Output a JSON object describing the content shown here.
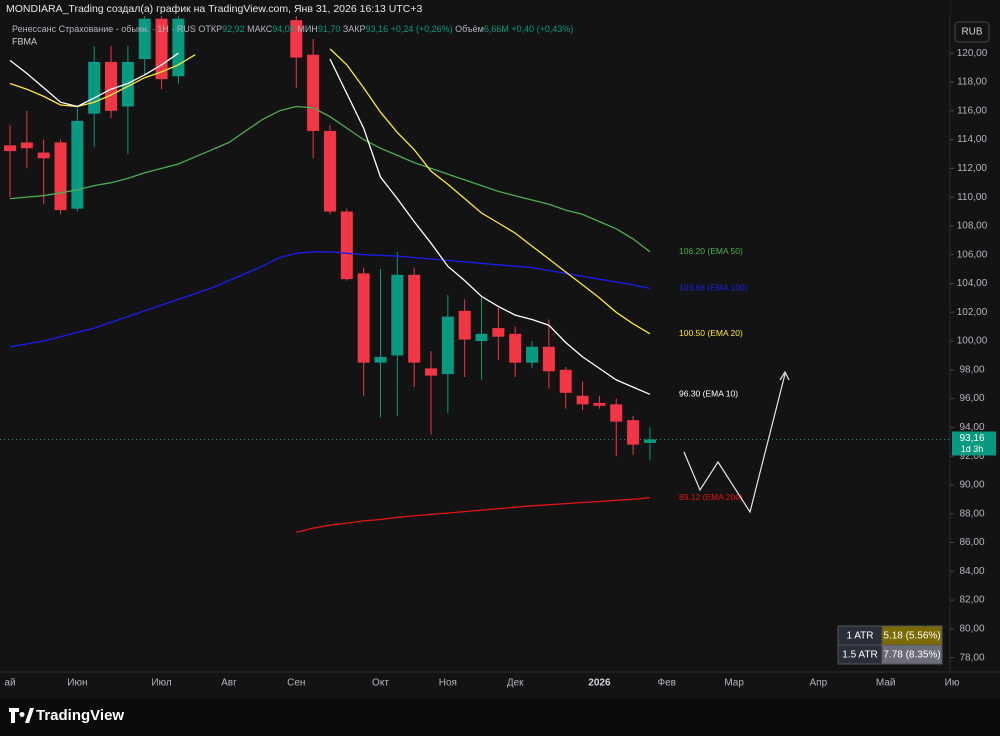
{
  "header": "MONDIARA_Trading создал(а) график на TradingView.com, Янв 31, 2026 16:13 UTC+3",
  "legend": {
    "symbol": "Ренессанс Страхование - обыкн. · 1Н · RUS",
    "open_label": "ОТКР",
    "open": "92,92",
    "high_label": "МАКС",
    "high": "94,00",
    "low_label": "МИН",
    "low": "91,70",
    "close_label": "ЗАКР",
    "close": "93,16",
    "change": "+0,24 (+0,26%)",
    "volume_label": "Объём",
    "volume": "6,66M",
    "volume_change": "+0,40 (+0,43%)",
    "indicator": "FBMA"
  },
  "currency": "RUB",
  "atr": [
    {
      "label": "1 ATR",
      "value": "5.18 (5.56%)"
    },
    {
      "label": "1.5 ATR",
      "value": "7.78 (8.35%)"
    }
  ],
  "footer": "TradingView",
  "chart_data": {
    "type": "candlestick",
    "categories": [
      "ай",
      null,
      null,
      null,
      "Июн",
      null,
      null,
      null,
      null,
      "Июл",
      null,
      null,
      null,
      "Авг",
      null,
      null,
      null,
      "Сен",
      null,
      null,
      null,
      null,
      "Окт",
      null,
      null,
      null,
      "Ноя",
      null,
      null,
      null,
      "Дек",
      null,
      null,
      null,
      null,
      "2026",
      null,
      null,
      null,
      "Фев",
      null,
      null,
      null,
      "Мар",
      null,
      null,
      null,
      null,
      "Апр",
      null,
      null,
      null,
      "Май",
      null,
      null,
      null,
      "Ию"
    ],
    "candles": {
      "up_color": "#089981",
      "down_color": "#f23645",
      "open": [
        113.6,
        113.8,
        113.1,
        113.8,
        109.2,
        115.8,
        119.4,
        116.3,
        119.6,
        122.4,
        118.4,
        null,
        null,
        null,
        null,
        null,
        null,
        122.3,
        119.9,
        114.6,
        109.0,
        104.7,
        98.5,
        99.0,
        104.6,
        98.1,
        97.7,
        102.1,
        100.0,
        100.9,
        100.5,
        98.5,
        99.6,
        98.0,
        96.2,
        95.7,
        95.6,
        94.5,
        92.92,
        null,
        null,
        null,
        null,
        null,
        null,
        null,
        null,
        null,
        null,
        null,
        null,
        null,
        null,
        null,
        null,
        null,
        null
      ],
      "high": [
        115.0,
        116.0,
        114.0,
        114.0,
        116.2,
        120.5,
        120.5,
        120.5,
        124,
        124,
        124,
        null,
        null,
        null,
        null,
        null,
        null,
        124,
        121,
        115.0,
        109.2,
        105.1,
        105.0,
        106.2,
        105.1,
        99.3,
        103.2,
        102.9,
        103.0,
        102.3,
        101.0,
        100.0,
        101.5,
        98.2,
        97.2,
        96.2,
        96.0,
        94.8,
        94.0,
        null,
        null,
        null,
        null,
        null,
        null,
        null,
        null,
        null,
        null,
        null,
        null,
        null,
        null,
        null,
        null,
        null,
        null
      ],
      "low": [
        110.0,
        112.0,
        109.5,
        108.8,
        109.0,
        113.5,
        115.5,
        113.0,
        118.5,
        117.5,
        117.9,
        null,
        null,
        null,
        null,
        null,
        null,
        117.6,
        112.7,
        108.8,
        104.2,
        96.2,
        94.7,
        94.8,
        96.8,
        93.5,
        95.0,
        97.5,
        97.3,
        98.7,
        97.5,
        98.1,
        96.7,
        95.3,
        95.2,
        95.3,
        92.0,
        92.1,
        91.7,
        null,
        null,
        null,
        null,
        null,
        null,
        null,
        null,
        null,
        null,
        null,
        null,
        null,
        null,
        null,
        null,
        null,
        null
      ],
      "close": [
        113.2,
        113.4,
        112.7,
        109.1,
        115.3,
        119.4,
        116.0,
        119.4,
        122.4,
        118.2,
        122.4,
        null,
        null,
        null,
        null,
        null,
        null,
        119.7,
        114.6,
        109.0,
        104.3,
        98.5,
        98.9,
        104.6,
        98.5,
        97.6,
        101.7,
        100.1,
        100.5,
        100.3,
        98.5,
        99.6,
        97.9,
        96.4,
        95.6,
        95.5,
        94.4,
        92.8,
        93.16,
        null,
        null,
        null,
        null,
        null,
        null,
        null,
        null,
        null,
        null,
        null,
        null,
        null,
        null,
        null,
        null,
        null,
        null
      ]
    },
    "series": [
      {
        "label": "106.20 (EMA 50)",
        "color": "#4caf50",
        "values": [
          109.9,
          110.0,
          110.1,
          110.3,
          110.5,
          110.8,
          111.0,
          111.3,
          111.7,
          112.0,
          112.3,
          112.8,
          113.3,
          113.8,
          114.6,
          115.4,
          116.0,
          116.3,
          116.2,
          115.6,
          114.8,
          114.0,
          113.4,
          112.9,
          112.4,
          112.0,
          111.6,
          111.2,
          110.8,
          110.4,
          110.1,
          109.8,
          109.5,
          109.1,
          108.8,
          108.3,
          107.8,
          107.1,
          106.2,
          null,
          null,
          null,
          null,
          null,
          null,
          null,
          null,
          null,
          null,
          null,
          null,
          null,
          null,
          null,
          null,
          null,
          null
        ]
      },
      {
        "label": "103.66 (EMA 100)",
        "color": "#1c1cf0",
        "values": [
          99.6,
          99.8,
          100.0,
          100.3,
          100.6,
          100.9,
          101.3,
          101.7,
          102.1,
          102.5,
          102.9,
          103.3,
          103.7,
          104.2,
          104.7,
          105.2,
          105.8,
          106.1,
          106.2,
          106.2,
          106.1,
          106.0,
          105.95,
          105.9,
          105.8,
          105.7,
          105.6,
          105.5,
          105.4,
          105.3,
          105.2,
          105.1,
          104.9,
          104.7,
          104.5,
          104.3,
          104.1,
          103.9,
          103.66,
          null,
          null,
          null,
          null,
          null,
          null,
          null,
          null,
          null,
          null,
          null,
          null,
          null,
          null,
          null,
          null,
          null,
          null
        ]
      },
      {
        "label": "100.50 (EMA 20)",
        "color": "#ffe83b",
        "values": [
          117.9,
          117.5,
          117.0,
          116.4,
          116.3,
          116.6,
          117.1,
          117.7,
          118.3,
          118.7,
          119.2,
          119.9,
          null,
          null,
          null,
          null,
          null,
          null,
          null,
          120.3,
          119.2,
          117.6,
          115.9,
          114.5,
          113.3,
          111.8,
          110.9,
          109.9,
          108.9,
          108.2,
          107.5,
          106.6,
          105.7,
          104.8,
          103.9,
          103.0,
          102.0,
          101.2,
          100.5,
          null,
          null,
          null,
          null,
          null,
          null,
          null,
          null,
          null,
          null,
          null,
          null,
          null,
          null,
          null,
          null,
          null,
          null
        ]
      },
      {
        "label": "96.30 (EMA 10)",
        "color": "#ffffff",
        "values": [
          119.5,
          118.6,
          117.6,
          116.6,
          116.3,
          116.9,
          117.5,
          117.9,
          118.5,
          119.2,
          120.0,
          null,
          null,
          null,
          null,
          null,
          null,
          null,
          null,
          119.6,
          117.2,
          114.8,
          111.4,
          109.9,
          108.3,
          106.8,
          105.2,
          104.2,
          103.1,
          102.4,
          101.8,
          101.5,
          101.1,
          99.9,
          98.9,
          98.1,
          97.3,
          96.8,
          96.3,
          null,
          null,
          null,
          null,
          null,
          null,
          null,
          null,
          null,
          null,
          null,
          null,
          null,
          null,
          null,
          null,
          null,
          null
        ]
      },
      {
        "label": "89.12 (EMA 200)",
        "color": "#e51414",
        "values": [
          null,
          null,
          null,
          null,
          null,
          null,
          null,
          null,
          null,
          null,
          null,
          null,
          null,
          null,
          null,
          null,
          null,
          86.7,
          87.0,
          87.2,
          87.35,
          87.5,
          87.6,
          87.75,
          87.85,
          87.95,
          88.05,
          88.15,
          88.25,
          88.35,
          88.45,
          88.55,
          88.62,
          88.7,
          88.78,
          88.85,
          88.93,
          89.0,
          89.12,
          null,
          null,
          null,
          null,
          null,
          null,
          null,
          null,
          null,
          null,
          null,
          null,
          null,
          null,
          null,
          null,
          null,
          null
        ]
      }
    ],
    "price_line": {
      "value": 93.16,
      "label": "93,16",
      "countdown": "1d 3h",
      "color": "#089981"
    },
    "ylim": [
      77.0,
      123.7
    ],
    "yticks": [
      {
        "value": 120,
        "label": "120,00"
      },
      {
        "value": 118,
        "label": "118,00"
      },
      {
        "value": 116,
        "label": "116,00"
      },
      {
        "value": 114,
        "label": "114,00"
      },
      {
        "value": 112,
        "label": "112,00"
      },
      {
        "value": 110,
        "label": "110,00"
      },
      {
        "value": 108,
        "label": "108,00"
      },
      {
        "value": 106,
        "label": "106,00"
      },
      {
        "value": 104,
        "label": "104,00"
      },
      {
        "value": 102,
        "label": "102,00"
      },
      {
        "value": 100,
        "label": "100,00"
      },
      {
        "value": 98,
        "label": "98,00"
      },
      {
        "value": 96,
        "label": "96,00"
      },
      {
        "value": 94,
        "label": "94,00"
      },
      {
        "value": 92,
        "label": "92,00"
      },
      {
        "value": 90,
        "label": "90,00"
      },
      {
        "value": 88,
        "label": "88,00"
      },
      {
        "value": 86,
        "label": "86,00"
      },
      {
        "value": 84,
        "label": "84,00"
      },
      {
        "value": 82,
        "label": "82,00"
      },
      {
        "value": 80,
        "label": "80,00"
      },
      {
        "value": 78,
        "label": "78,00"
      }
    ],
    "grid": false
  }
}
